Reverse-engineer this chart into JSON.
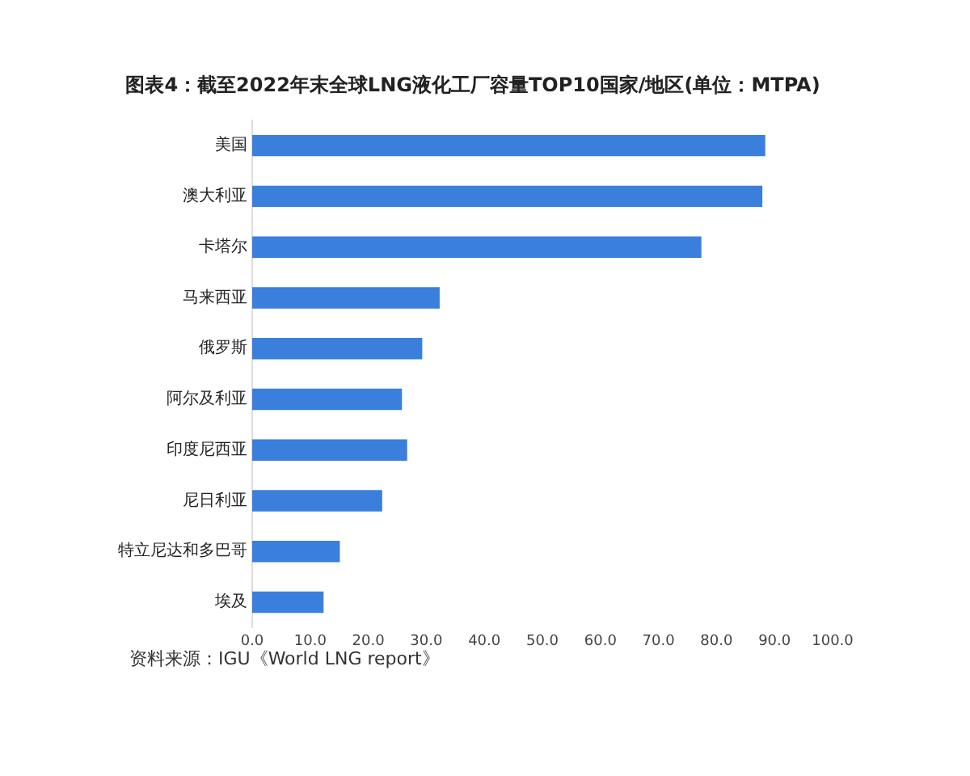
{
  "chart_data": {
    "type": "bar",
    "orientation": "horizontal",
    "title": "图表4：截至2022年末全球LNG液化工厂容量TOP10国家/地区(单位：MTPA)",
    "categories": [
      "美国",
      "澳大利亚",
      "卡塔尔",
      "马来西亚",
      "俄罗斯",
      "阿尔及利亚",
      "印度尼西亚",
      "尼日利亚",
      "特立尼达和多巴哥",
      "埃及"
    ],
    "values": [
      88.4,
      87.9,
      77.4,
      32.3,
      29.3,
      25.8,
      26.7,
      22.4,
      15.1,
      12.3
    ],
    "color": "#3a7fdc",
    "xlim": [
      0,
      100
    ],
    "xticks": [
      {
        "value": 0,
        "label": "0.0"
      },
      {
        "value": 10,
        "label": "10.0"
      },
      {
        "value": 20,
        "label": "20.0"
      },
      {
        "value": 30,
        "label": "30.0"
      },
      {
        "value": 40,
        "label": "40.0"
      },
      {
        "value": 50,
        "label": "50.0"
      },
      {
        "value": 60,
        "label": "60.0"
      },
      {
        "value": 70,
        "label": "70.0"
      },
      {
        "value": 80,
        "label": "80.0"
      },
      {
        "value": 90,
        "label": "90.0"
      },
      {
        "value": 100,
        "label": "100.0"
      }
    ],
    "grid": false,
    "legend": false,
    "annotations": [
      "资料来源：IGU《World LNG report》"
    ]
  }
}
